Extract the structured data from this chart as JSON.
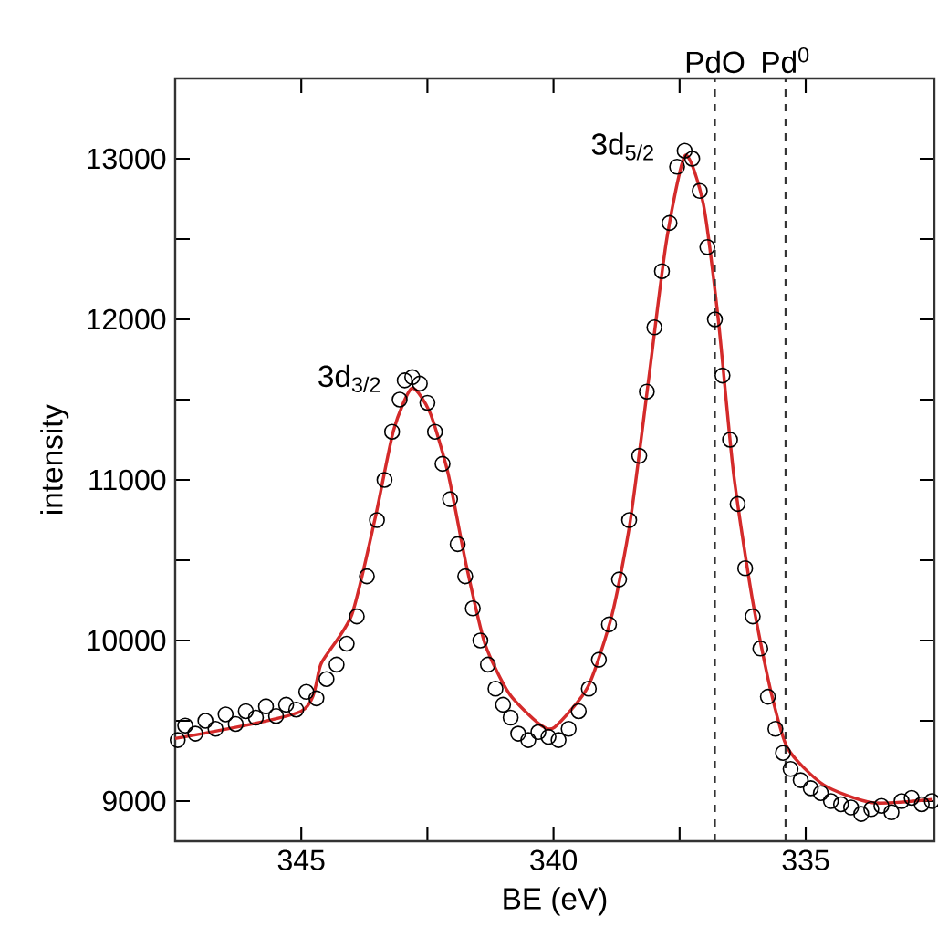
{
  "chart_data": {
    "type": "scatter",
    "xlabel": "BE (eV)",
    "ylabel": "intensity",
    "xlim": [
      347.5,
      332.45
    ],
    "ylim": [
      8750,
      13500
    ],
    "xticks": [
      345,
      {
        "value": 342.5,
        "label": null
      },
      340,
      {
        "value": 337.5,
        "label": null
      },
      335
    ],
    "yticks": [
      9000,
      {
        "value": 9500,
        "label": null
      },
      10000,
      {
        "value": 10500,
        "label": null
      },
      11000,
      {
        "value": 11500,
        "label": null
      },
      12000,
      {
        "value": 12500,
        "label": null
      },
      13000
    ],
    "grid": false,
    "series": [
      {
        "color": "#000000",
        "marker": "circle",
        "x": [
          347.45,
          347.3,
          347.1,
          346.9,
          346.7,
          346.5,
          346.3,
          346.1,
          345.9,
          345.7,
          345.5,
          345.3,
          345.1,
          344.9,
          344.7,
          344.5,
          344.3,
          344.1,
          343.9,
          343.7,
          343.5,
          343.35,
          343.2,
          343.05,
          342.95,
          342.8,
          342.65,
          342.5,
          342.35,
          342.2,
          342.05,
          341.9,
          341.75,
          341.6,
          341.45,
          341.3,
          341.15,
          341.0,
          340.85,
          340.7,
          340.5,
          340.3,
          340.1,
          339.9,
          339.7,
          339.5,
          339.3,
          339.1,
          338.9,
          338.7,
          338.5,
          338.3,
          338.15,
          338.0,
          337.85,
          337.7,
          337.55,
          337.4,
          337.25,
          337.1,
          336.95,
          336.8,
          336.65,
          336.5,
          336.35,
          336.2,
          336.05,
          335.9,
          335.75,
          335.6,
          335.45,
          335.3,
          335.1,
          334.9,
          334.7,
          334.5,
          334.3,
          334.1,
          333.9,
          333.7,
          333.5,
          333.3,
          333.1,
          332.9,
          332.7,
          332.5
        ],
        "values": [
          9380,
          9470,
          9420,
          9500,
          9450,
          9540,
          9480,
          9560,
          9520,
          9590,
          9530,
          9600,
          9570,
          9680,
          9640,
          9760,
          9850,
          9980,
          10150,
          10400,
          10750,
          11000,
          11300,
          11500,
          11620,
          11640,
          11600,
          11480,
          11300,
          11100,
          10880,
          10600,
          10400,
          10200,
          10000,
          9850,
          9700,
          9600,
          9520,
          9420,
          9380,
          9430,
          9400,
          9380,
          9450,
          9560,
          9700,
          9880,
          10100,
          10380,
          10750,
          11150,
          11550,
          11950,
          12300,
          12600,
          12950,
          13050,
          13000,
          12800,
          12450,
          12000,
          11650,
          11250,
          10850,
          10450,
          10150,
          9950,
          9650,
          9450,
          9300,
          9200,
          9130,
          9080,
          9050,
          9000,
          8980,
          8960,
          8920,
          8950,
          8970,
          8930,
          9000,
          9020,
          8980,
          9000
        ]
      },
      {
        "type": "line",
        "color": "#d42a2a",
        "marker": "none",
        "line_style": "solid",
        "x": [
          347.5,
          345.0,
          344.6,
          344.0,
          343.53,
          343.17,
          342.81,
          342.45,
          342.09,
          341.73,
          341.36,
          340.88,
          340.28,
          339.98,
          339.32,
          338.84,
          338.48,
          338.12,
          337.76,
          337.39,
          337.03,
          336.73,
          336.43,
          336.07,
          335.71,
          335.36,
          334.64,
          333.68,
          332.5
        ],
        "values": [
          9390,
          9560,
          9860,
          10160,
          10770,
          11310,
          11570,
          11420,
          11040,
          10470,
          9980,
          9670,
          9480,
          9460,
          9710,
          10160,
          10740,
          11610,
          12490,
          13020,
          12720,
          11990,
          11040,
          10280,
          9710,
          9330,
          9100,
          8990,
          9010
        ]
      }
    ],
    "ref_lines": [
      {
        "axis": "x",
        "value": 336.8,
        "label": "PdO",
        "line_style": "dashed"
      },
      {
        "axis": "x",
        "value": 335.4,
        "label": "Pd$^{0}$",
        "line_style": "dashed"
      }
    ],
    "annotations": [
      {
        "text": "3d$_{3/2}$",
        "x": 342.81,
        "y": 11573
      },
      {
        "text": "3d$_{5/2}$",
        "x": 337.39,
        "y": 13018
      }
    ]
  }
}
